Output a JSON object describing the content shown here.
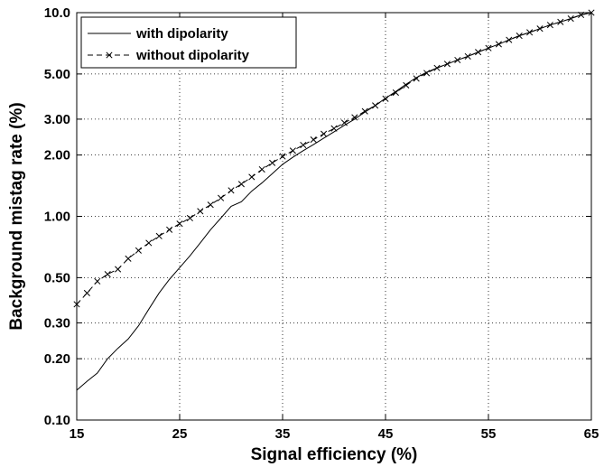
{
  "chart_data": {
    "type": "line",
    "title": "",
    "xlabel": "Signal efficiency (%)",
    "ylabel": "Background mistag rate (%)",
    "xlim": [
      15,
      65
    ],
    "ylim": [
      0.1,
      10.0
    ],
    "yscale": "log",
    "grid": true,
    "legend_position": "top-left",
    "x_ticks": [
      "15",
      "25",
      "35",
      "45",
      "55",
      "65"
    ],
    "y_ticks": [
      "0.10",
      "0.20",
      "0.30",
      "0.50",
      "1.00",
      "2.00",
      "3.00",
      "5.00",
      "10.0"
    ],
    "series": [
      {
        "name": "with dipolarity",
        "line_style": "solid",
        "marker": "none",
        "color": "#000000",
        "x": [
          15,
          16,
          17,
          18,
          19,
          20,
          21,
          22,
          23,
          24,
          25,
          26,
          27,
          28,
          29,
          30,
          31,
          32,
          33,
          34,
          35,
          36,
          37,
          38,
          39,
          40,
          41,
          42,
          43,
          44,
          45,
          46,
          47,
          48,
          49,
          50,
          51,
          52,
          53,
          54,
          55,
          56,
          57,
          58,
          59,
          60,
          61,
          62,
          63,
          64,
          65
        ],
        "y": [
          0.14,
          0.155,
          0.17,
          0.2,
          0.225,
          0.25,
          0.29,
          0.35,
          0.42,
          0.49,
          0.56,
          0.64,
          0.74,
          0.86,
          0.98,
          1.12,
          1.18,
          1.33,
          1.46,
          1.62,
          1.8,
          1.95,
          2.1,
          2.25,
          2.42,
          2.6,
          2.8,
          3.0,
          3.25,
          3.5,
          3.8,
          4.1,
          4.45,
          4.8,
          5.1,
          5.35,
          5.6,
          5.85,
          6.1,
          6.4,
          6.7,
          7.0,
          7.35,
          7.7,
          8.0,
          8.35,
          8.7,
          9.0,
          9.35,
          9.75,
          10.0
        ]
      },
      {
        "name": "without dipolarity",
        "line_style": "dashed",
        "marker": "x",
        "color": "#000000",
        "x": [
          15,
          16,
          17,
          18,
          19,
          20,
          21,
          22,
          23,
          24,
          25,
          26,
          27,
          28,
          29,
          30,
          31,
          32,
          33,
          34,
          35,
          36,
          37,
          38,
          39,
          40,
          41,
          42,
          43,
          44,
          45,
          46,
          47,
          48,
          49,
          50,
          51,
          52,
          53,
          54,
          55,
          56,
          57,
          58,
          59,
          60,
          61,
          62,
          63,
          64,
          65
        ],
        "y": [
          0.37,
          0.42,
          0.48,
          0.52,
          0.55,
          0.62,
          0.68,
          0.74,
          0.8,
          0.86,
          0.92,
          0.98,
          1.06,
          1.14,
          1.23,
          1.34,
          1.44,
          1.56,
          1.7,
          1.83,
          1.97,
          2.1,
          2.24,
          2.38,
          2.54,
          2.7,
          2.88,
          3.06,
          3.28,
          3.5,
          3.78,
          4.05,
          4.4,
          4.75,
          5.05,
          5.35,
          5.6,
          5.85,
          6.1,
          6.4,
          6.7,
          7.0,
          7.35,
          7.7,
          8.0,
          8.35,
          8.7,
          9.0,
          9.35,
          9.75,
          10.0
        ]
      }
    ]
  }
}
